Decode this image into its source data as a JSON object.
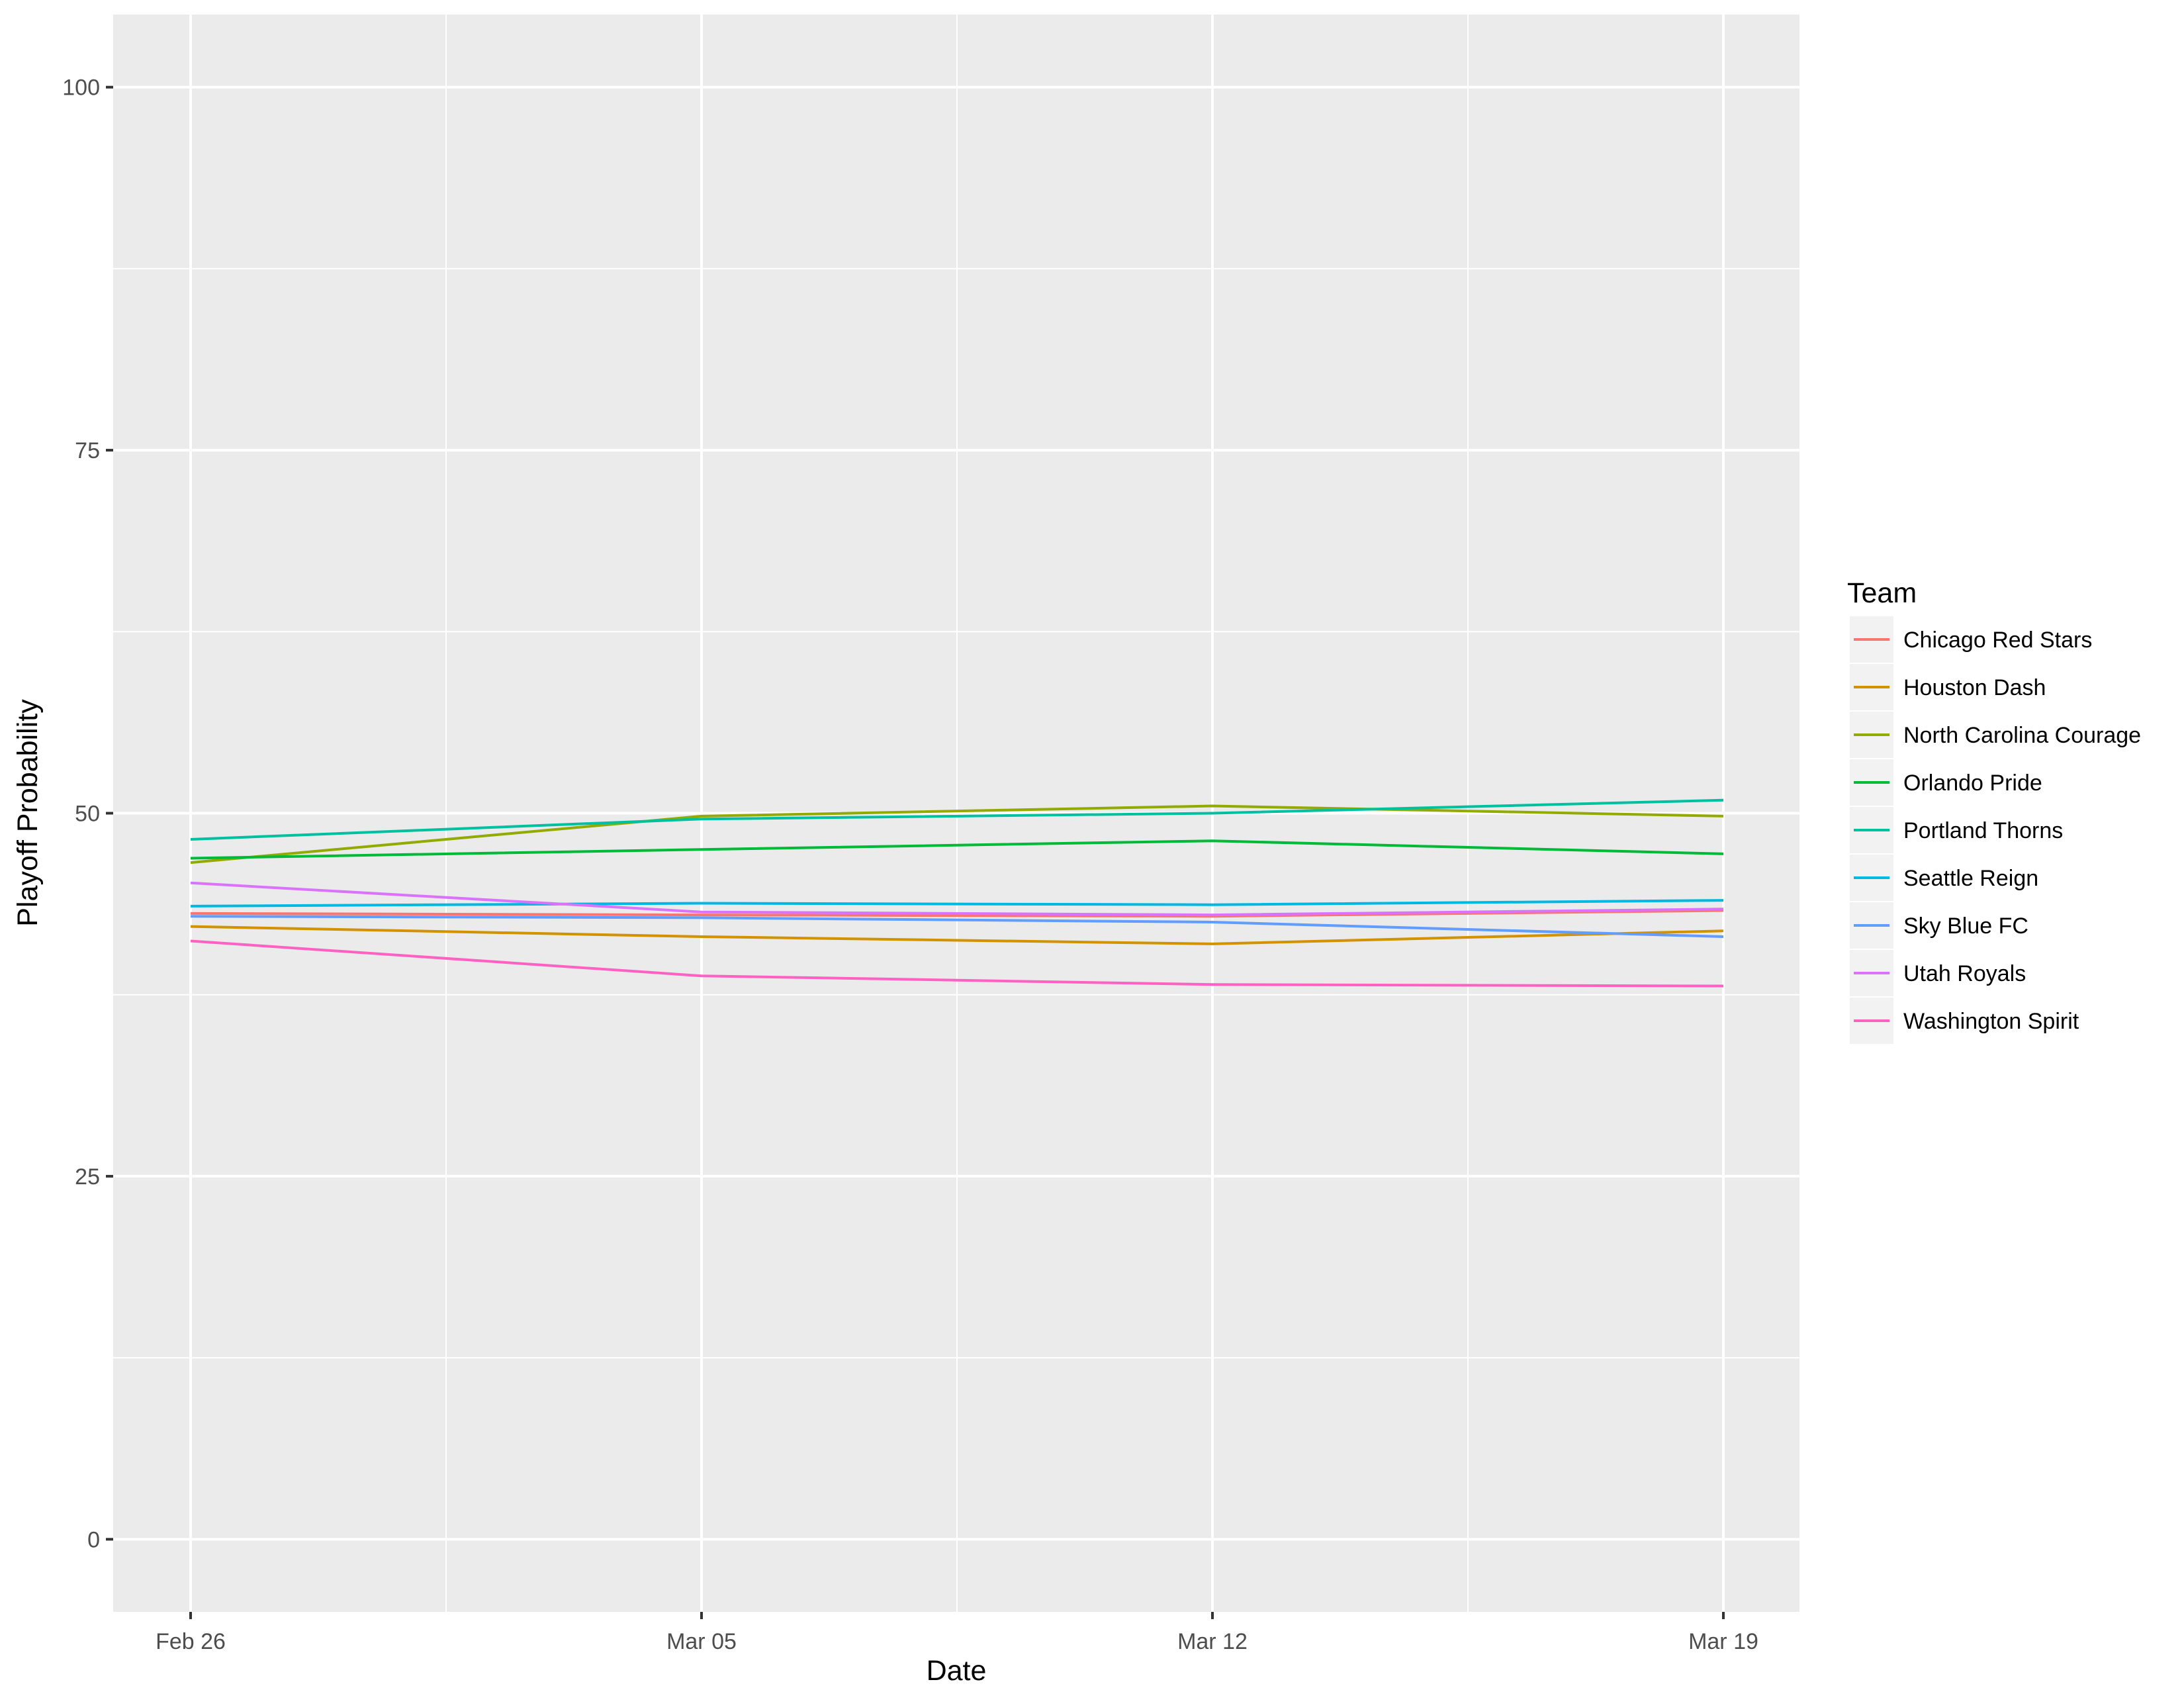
{
  "chart_data": {
    "type": "line",
    "title": "",
    "xlabel": "Date",
    "ylabel": "Playoff Probability",
    "x": [
      "Feb 26",
      "Mar 05",
      "Mar 12",
      "Mar 19"
    ],
    "x_tick_labels": [
      "Feb 26",
      "Mar 05",
      "Mar 12",
      "Mar 19"
    ],
    "y_ticks": [
      0,
      25,
      50,
      75,
      100
    ],
    "ylim": [
      -5,
      105
    ],
    "grid": true,
    "legend": {
      "title": "Team",
      "placement": "right"
    },
    "series": [
      {
        "name": "Chicago Red Stars",
        "color": "#F8766D",
        "values": [
          43.1,
          43.0,
          42.9,
          43.3
        ]
      },
      {
        "name": "Houston Dash",
        "color": "#D39200",
        "values": [
          42.2,
          41.5,
          41.0,
          41.9
        ]
      },
      {
        "name": "North Carolina Courage",
        "color": "#93AA00",
        "values": [
          46.6,
          49.8,
          50.5,
          49.8
        ]
      },
      {
        "name": "Orlando Pride",
        "color": "#00BA38",
        "values": [
          46.9,
          47.5,
          48.1,
          47.2
        ]
      },
      {
        "name": "Portland Thorns",
        "color": "#00C19F",
        "values": [
          48.2,
          49.6,
          50.0,
          50.9
        ]
      },
      {
        "name": "Seattle Reign",
        "color": "#00B9E3",
        "values": [
          43.6,
          43.8,
          43.7,
          44.0
        ]
      },
      {
        "name": "Sky Blue FC",
        "color": "#619CFF",
        "values": [
          42.9,
          42.8,
          42.5,
          41.5
        ]
      },
      {
        "name": "Utah Royals",
        "color": "#DB72FB",
        "values": [
          45.2,
          43.2,
          43.0,
          43.4
        ]
      },
      {
        "name": "Washington Spirit",
        "color": "#FF61C3",
        "values": [
          41.2,
          38.8,
          38.2,
          38.1
        ]
      }
    ]
  }
}
